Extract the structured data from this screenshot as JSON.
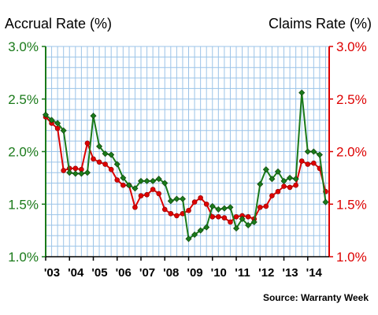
{
  "chart_data": {
    "type": "line",
    "left_title": "Accrual Rate (%)",
    "right_title": "Claims Rate (%)",
    "source": "Source: Warranty Week",
    "colors": {
      "accrual": "#1a7a1a",
      "claims": "#dd0000"
    },
    "y_ticks": [
      "1.0%",
      "1.5%",
      "2.0%",
      "2.5%",
      "3.0%"
    ],
    "y_tick_values": [
      1.0,
      1.5,
      2.0,
      2.5,
      3.0
    ],
    "ylim": [
      1.0,
      3.0
    ],
    "x_tick_labels": [
      "'03",
      "'04",
      "'05",
      "'06",
      "'07",
      "'08",
      "'09",
      "'10",
      "'11",
      "'12",
      "'13",
      "'14"
    ],
    "x_tick_years": [
      2003,
      2004,
      2005,
      2006,
      2007,
      2008,
      2009,
      2010,
      2011,
      2012,
      2013,
      2014
    ],
    "xlim": [
      2003,
      2014.9
    ],
    "grid": true,
    "series": [
      {
        "key": "accrual",
        "x": [
          2003.0,
          2003.25,
          2003.5,
          2003.75,
          2004.0,
          2004.25,
          2004.5,
          2004.75,
          2005.0,
          2005.25,
          2005.5,
          2005.75,
          2006.0,
          2006.25,
          2006.5,
          2006.75,
          2007.0,
          2007.25,
          2007.5,
          2007.75,
          2008.0,
          2008.25,
          2008.5,
          2008.75,
          2009.0,
          2009.25,
          2009.5,
          2009.75,
          2010.0,
          2010.25,
          2010.5,
          2010.75,
          2011.0,
          2011.25,
          2011.5,
          2011.75,
          2012.0,
          2012.25,
          2012.5,
          2012.75,
          2013.0,
          2013.25,
          2013.5,
          2013.75,
          2014.0,
          2014.25,
          2014.5,
          2014.75
        ],
        "values": [
          2.35,
          2.3,
          2.27,
          2.2,
          1.8,
          1.79,
          1.79,
          1.8,
          2.34,
          2.05,
          1.98,
          1.97,
          1.88,
          1.75,
          1.68,
          1.65,
          1.72,
          1.72,
          1.72,
          1.74,
          1.7,
          1.53,
          1.55,
          1.55,
          1.17,
          1.21,
          1.25,
          1.28,
          1.48,
          1.45,
          1.46,
          1.47,
          1.27,
          1.36,
          1.3,
          1.33,
          1.69,
          1.83,
          1.74,
          1.81,
          1.72,
          1.75,
          1.74,
          2.56,
          2.0,
          2.0,
          1.97,
          1.52
        ]
      },
      {
        "key": "claims",
        "x": [
          2003.0,
          2003.25,
          2003.5,
          2003.75,
          2004.0,
          2004.25,
          2004.5,
          2004.75,
          2005.0,
          2005.25,
          2005.5,
          2005.75,
          2006.0,
          2006.25,
          2006.5,
          2006.75,
          2007.0,
          2007.25,
          2007.5,
          2007.75,
          2008.0,
          2008.25,
          2008.5,
          2008.75,
          2009.0,
          2009.25,
          2009.5,
          2009.75,
          2010.0,
          2010.25,
          2010.5,
          2010.75,
          2011.0,
          2011.25,
          2011.5,
          2011.75,
          2012.0,
          2012.25,
          2012.5,
          2012.75,
          2013.0,
          2013.25,
          2013.5,
          2013.75,
          2014.0,
          2014.25,
          2014.5,
          2014.75
        ],
        "values": [
          2.33,
          2.27,
          2.22,
          1.82,
          1.84,
          1.84,
          1.83,
          2.08,
          1.93,
          1.9,
          1.88,
          1.83,
          1.73,
          1.68,
          1.68,
          1.47,
          1.58,
          1.59,
          1.64,
          1.6,
          1.45,
          1.41,
          1.39,
          1.41,
          1.44,
          1.52,
          1.56,
          1.5,
          1.38,
          1.38,
          1.37,
          1.33,
          1.38,
          1.39,
          1.38,
          1.36,
          1.47,
          1.48,
          1.58,
          1.62,
          1.67,
          1.66,
          1.68,
          1.91,
          1.88,
          1.89,
          1.84,
          1.62
        ]
      }
    ]
  }
}
